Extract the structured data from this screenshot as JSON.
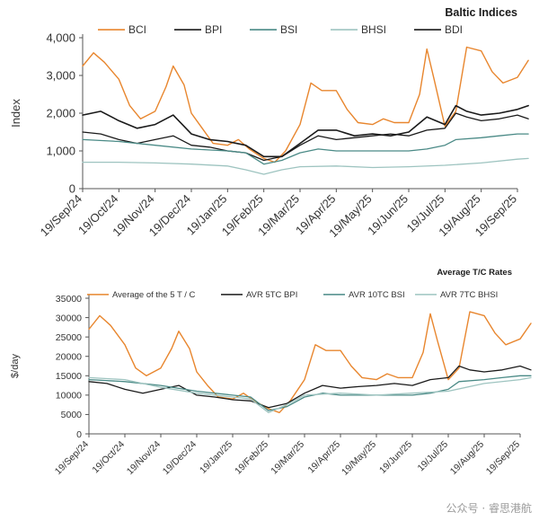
{
  "charts": [
    {
      "type": "line",
      "title": "Baltic Indices",
      "ylabel": "Index",
      "ylim": [
        0,
        4000
      ],
      "yticks": [
        0,
        1000,
        2000,
        3000,
        4000
      ],
      "ytick_labels": [
        "0",
        "1,000",
        "2,000",
        "3,000",
        "4,000"
      ],
      "xticks": [
        "19/Sep/24",
        "19/Oct/24",
        "19/Nov/24",
        "19/Dec/24",
        "19/Jan/25",
        "19/Feb/25",
        "19/Mar/25",
        "19/Apr/25",
        "19/May/25",
        "19/Jun/25",
        "19/Jul/25",
        "19/Aug/25",
        "19/Sep/25"
      ],
      "series": [
        {
          "name": "BCI",
          "label": "BCI",
          "color": "#e8862e",
          "width": 1.4,
          "points": [
            [
              0,
              3250
            ],
            [
              0.3,
              3600
            ],
            [
              0.6,
              3350
            ],
            [
              1,
              2900
            ],
            [
              1.3,
              2200
            ],
            [
              1.6,
              1850
            ],
            [
              2,
              2050
            ],
            [
              2.3,
              2700
            ],
            [
              2.5,
              3250
            ],
            [
              2.8,
              2750
            ],
            [
              3,
              2000
            ],
            [
              3.3,
              1600
            ],
            [
              3.6,
              1200
            ],
            [
              4,
              1150
            ],
            [
              4.3,
              1300
            ],
            [
              4.6,
              1050
            ],
            [
              5,
              800
            ],
            [
              5.3,
              700
            ],
            [
              5.6,
              1000
            ],
            [
              6,
              1700
            ],
            [
              6.3,
              2800
            ],
            [
              6.6,
              2600
            ],
            [
              7,
              2600
            ],
            [
              7.3,
              2100
            ],
            [
              7.6,
              1750
            ],
            [
              8,
              1700
            ],
            [
              8.3,
              1850
            ],
            [
              8.6,
              1750
            ],
            [
              9,
              1750
            ],
            [
              9.3,
              2500
            ],
            [
              9.5,
              3700
            ],
            [
              9.7,
              2900
            ],
            [
              10,
              1650
            ],
            [
              10.3,
              2050
            ],
            [
              10.6,
              3750
            ],
            [
              11,
              3650
            ],
            [
              11.3,
              3100
            ],
            [
              11.6,
              2800
            ],
            [
              12,
              2950
            ],
            [
              12.3,
              3400
            ]
          ]
        },
        {
          "name": "BPI",
          "label": "BPI",
          "color": "#1a1a1a",
          "width": 1.3,
          "points": [
            [
              0,
              1500
            ],
            [
              0.5,
              1450
            ],
            [
              1,
              1300
            ],
            [
              1.5,
              1200
            ],
            [
              2,
              1300
            ],
            [
              2.5,
              1400
            ],
            [
              3,
              1150
            ],
            [
              3.5,
              1100
            ],
            [
              4,
              1000
            ],
            [
              4.5,
              950
            ],
            [
              5,
              750
            ],
            [
              5.5,
              850
            ],
            [
              6,
              1150
            ],
            [
              6.5,
              1400
            ],
            [
              7,
              1300
            ],
            [
              7.5,
              1350
            ],
            [
              8,
              1400
            ],
            [
              8.5,
              1450
            ],
            [
              9,
              1400
            ],
            [
              9.5,
              1550
            ],
            [
              10,
              1600
            ],
            [
              10.3,
              2000
            ],
            [
              10.6,
              1900
            ],
            [
              11,
              1800
            ],
            [
              11.5,
              1850
            ],
            [
              12,
              1950
            ],
            [
              12.3,
              1850
            ]
          ]
        },
        {
          "name": "BSI",
          "label": "BSI",
          "color": "#4a8a86",
          "width": 1.3,
          "points": [
            [
              0,
              1300
            ],
            [
              1,
              1250
            ],
            [
              2,
              1150
            ],
            [
              3,
              1050
            ],
            [
              4,
              1000
            ],
            [
              4.5,
              950
            ],
            [
              5,
              650
            ],
            [
              5.5,
              750
            ],
            [
              6,
              950
            ],
            [
              6.5,
              1050
            ],
            [
              7,
              1000
            ],
            [
              8,
              1000
            ],
            [
              9,
              1000
            ],
            [
              9.5,
              1050
            ],
            [
              10,
              1150
            ],
            [
              10.3,
              1300
            ],
            [
              11,
              1350
            ],
            [
              11.5,
              1400
            ],
            [
              12,
              1450
            ],
            [
              12.3,
              1450
            ]
          ]
        },
        {
          "name": "BHSI",
          "label": "BHSI",
          "color": "#9ec4c0",
          "width": 1.3,
          "points": [
            [
              0,
              700
            ],
            [
              1,
              700
            ],
            [
              2,
              680
            ],
            [
              3,
              650
            ],
            [
              4,
              600
            ],
            [
              4.5,
              500
            ],
            [
              5,
              380
            ],
            [
              5.5,
              500
            ],
            [
              6,
              580
            ],
            [
              7,
              600
            ],
            [
              8,
              560
            ],
            [
              9,
              580
            ],
            [
              10,
              620
            ],
            [
              11,
              680
            ],
            [
              12,
              780
            ],
            [
              12.3,
              800
            ]
          ]
        },
        {
          "name": "BDI",
          "label": "BDI",
          "color": "#1a1a1a",
          "width": 1.6,
          "points": [
            [
              0,
              1950
            ],
            [
              0.5,
              2050
            ],
            [
              1,
              1800
            ],
            [
              1.5,
              1600
            ],
            [
              2,
              1700
            ],
            [
              2.5,
              1950
            ],
            [
              3,
              1450
            ],
            [
              3.5,
              1300
            ],
            [
              4,
              1250
            ],
            [
              4.5,
              1150
            ],
            [
              5,
              850
            ],
            [
              5.5,
              850
            ],
            [
              6,
              1200
            ],
            [
              6.5,
              1550
            ],
            [
              7,
              1550
            ],
            [
              7.5,
              1400
            ],
            [
              8,
              1450
            ],
            [
              8.5,
              1400
            ],
            [
              9,
              1500
            ],
            [
              9.5,
              1900
            ],
            [
              10,
              1700
            ],
            [
              10.3,
              2200
            ],
            [
              10.6,
              2050
            ],
            [
              11,
              1950
            ],
            [
              11.5,
              2000
            ],
            [
              12,
              2100
            ],
            [
              12.3,
              2200
            ]
          ]
        }
      ]
    },
    {
      "type": "line",
      "title": "Average T/C Rates",
      "ylabel": "$/day",
      "ylim": [
        0,
        35000
      ],
      "yticks": [
        0,
        5000,
        10000,
        15000,
        20000,
        25000,
        30000,
        35000
      ],
      "ytick_labels": [
        "0",
        "5000",
        "10000",
        "15000",
        "20000",
        "25000",
        "30000",
        "35000"
      ],
      "xticks": [
        "19/Sep/24",
        "19/Oct/24",
        "19/Nov/24",
        "19/Dec/24",
        "19/Jan/25",
        "19/Feb/25",
        "19/Mar/25",
        "19/Apr/25",
        "19/May/25",
        "19/Jun/25",
        "19/Jul/25",
        "19/Aug/25",
        "19/Sep/25"
      ],
      "series": [
        {
          "name": "Average of the 5 T/C",
          "label": "Average of the 5 T / C",
          "color": "#e8862e",
          "width": 1.4,
          "points": [
            [
              0,
              27000
            ],
            [
              0.3,
              30500
            ],
            [
              0.6,
              28000
            ],
            [
              1,
              23000
            ],
            [
              1.3,
              17000
            ],
            [
              1.6,
              15000
            ],
            [
              2,
              17000
            ],
            [
              2.3,
              22000
            ],
            [
              2.5,
              26500
            ],
            [
              2.8,
              22000
            ],
            [
              3,
              16000
            ],
            [
              3.3,
              12500
            ],
            [
              3.6,
              9500
            ],
            [
              4,
              9000
            ],
            [
              4.3,
              10500
            ],
            [
              4.6,
              8500
            ],
            [
              5,
              6500
            ],
            [
              5.3,
              5500
            ],
            [
              5.6,
              8500
            ],
            [
              6,
              14000
            ],
            [
              6.3,
              23000
            ],
            [
              6.6,
              21500
            ],
            [
              7,
              21500
            ],
            [
              7.3,
              17500
            ],
            [
              7.6,
              14500
            ],
            [
              8,
              14000
            ],
            [
              8.3,
              15500
            ],
            [
              8.6,
              14500
            ],
            [
              9,
              14500
            ],
            [
              9.3,
              21000
            ],
            [
              9.5,
              31000
            ],
            [
              9.7,
              24000
            ],
            [
              10,
              14000
            ],
            [
              10.3,
              17000
            ],
            [
              10.6,
              31500
            ],
            [
              11,
              30500
            ],
            [
              11.3,
              26000
            ],
            [
              11.6,
              23000
            ],
            [
              12,
              24500
            ],
            [
              12.3,
              28500
            ]
          ]
        },
        {
          "name": "AVR 5TC BPI",
          "label": "AVR 5TC BPI",
          "color": "#1a1a1a",
          "width": 1.3,
          "points": [
            [
              0,
              13500
            ],
            [
              0.5,
              13000
            ],
            [
              1,
              11500
            ],
            [
              1.5,
              10500
            ],
            [
              2,
              11500
            ],
            [
              2.5,
              12500
            ],
            [
              3,
              10000
            ],
            [
              3.5,
              9500
            ],
            [
              4,
              8800
            ],
            [
              4.5,
              8500
            ],
            [
              5,
              6800
            ],
            [
              5.5,
              7800
            ],
            [
              6,
              10500
            ],
            [
              6.5,
              12500
            ],
            [
              7,
              11800
            ],
            [
              7.5,
              12200
            ],
            [
              8,
              12500
            ],
            [
              8.5,
              13000
            ],
            [
              9,
              12500
            ],
            [
              9.5,
              14000
            ],
            [
              10,
              14500
            ],
            [
              10.3,
              17500
            ],
            [
              10.6,
              16500
            ],
            [
              11,
              16000
            ],
            [
              11.5,
              16500
            ],
            [
              12,
              17500
            ],
            [
              12.3,
              16500
            ]
          ]
        },
        {
          "name": "AVR 10TC BSI",
          "label": "AVR 10TC BSI",
          "color": "#4a8a86",
          "width": 1.3,
          "points": [
            [
              0,
              14000
            ],
            [
              1,
              13500
            ],
            [
              2,
              12500
            ],
            [
              3,
              11000
            ],
            [
              4,
              10000
            ],
            [
              4.5,
              9500
            ],
            [
              5,
              6000
            ],
            [
              5.5,
              7000
            ],
            [
              6,
              9500
            ],
            [
              6.5,
              10500
            ],
            [
              7,
              10000
            ],
            [
              8,
              10000
            ],
            [
              9,
              10000
            ],
            [
              9.5,
              10500
            ],
            [
              10,
              11500
            ],
            [
              10.3,
              13500
            ],
            [
              11,
              14000
            ],
            [
              11.5,
              14500
            ],
            [
              12,
              15000
            ],
            [
              12.3,
              15000
            ]
          ]
        },
        {
          "name": "AVR 7TC BHSI",
          "label": "AVR 7TC BHSI",
          "color": "#9ec4c0",
          "width": 1.3,
          "points": [
            [
              0,
              14500
            ],
            [
              1,
              14000
            ],
            [
              2,
              12000
            ],
            [
              3,
              10500
            ],
            [
              4,
              9500
            ],
            [
              4.5,
              9000
            ],
            [
              5,
              5500
            ],
            [
              5.5,
              7500
            ],
            [
              6,
              10000
            ],
            [
              7,
              10500
            ],
            [
              8,
              10000
            ],
            [
              9,
              10500
            ],
            [
              10,
              11000
            ],
            [
              11,
              13000
            ],
            [
              12,
              14000
            ],
            [
              12.3,
              14500
            ]
          ]
        }
      ]
    }
  ],
  "watermark": "公众号 · 睿思港航"
}
